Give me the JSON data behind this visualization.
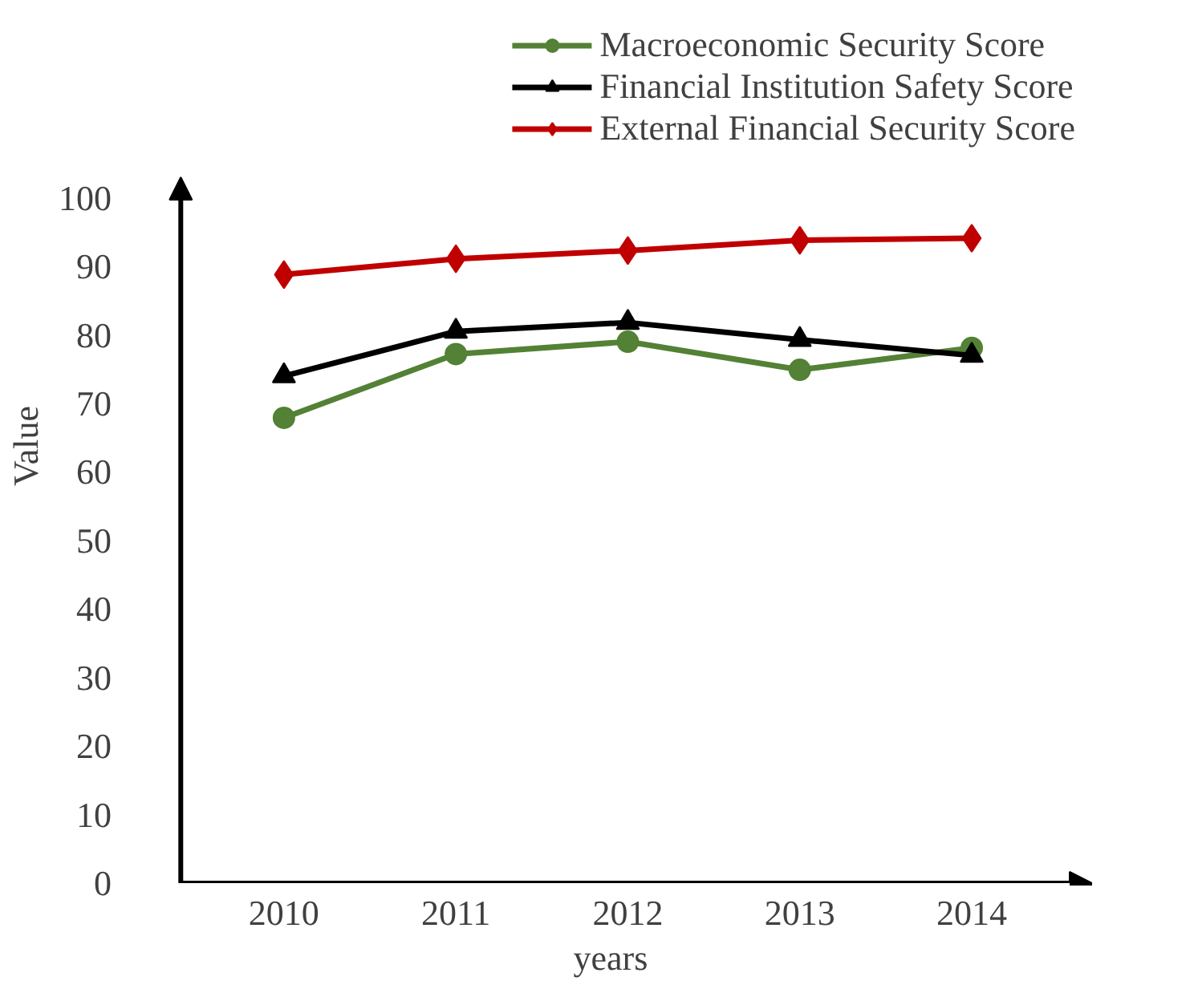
{
  "chart_data": {
    "type": "line",
    "xlabel": "years",
    "ylabel": "Value",
    "categories": [
      "2010",
      "2011",
      "2012",
      "2013",
      "2014"
    ],
    "ylim": [
      0,
      103
    ],
    "yticks": [
      0,
      10,
      20,
      30,
      40,
      50,
      60,
      70,
      80,
      90,
      100
    ],
    "grid": false,
    "legend": "top right",
    "line_style": "solid",
    "series": [
      {
        "name": "Macroeconomic Security Score",
        "color": "#538135",
        "marker": "circle",
        "values": [
          67.9,
          77.2,
          79.0,
          74.9,
          78.1
        ]
      },
      {
        "name": "Financial Institution Safety Score",
        "color": "#000000",
        "marker": "triangle",
        "values": [
          74.0,
          80.5,
          81.8,
          79.3,
          77.0
        ]
      },
      {
        "name": "External Financial Security Score",
        "color": "#c00000",
        "marker": "diamond",
        "values": [
          88.8,
          91.1,
          92.3,
          93.8,
          94.1
        ]
      }
    ]
  }
}
